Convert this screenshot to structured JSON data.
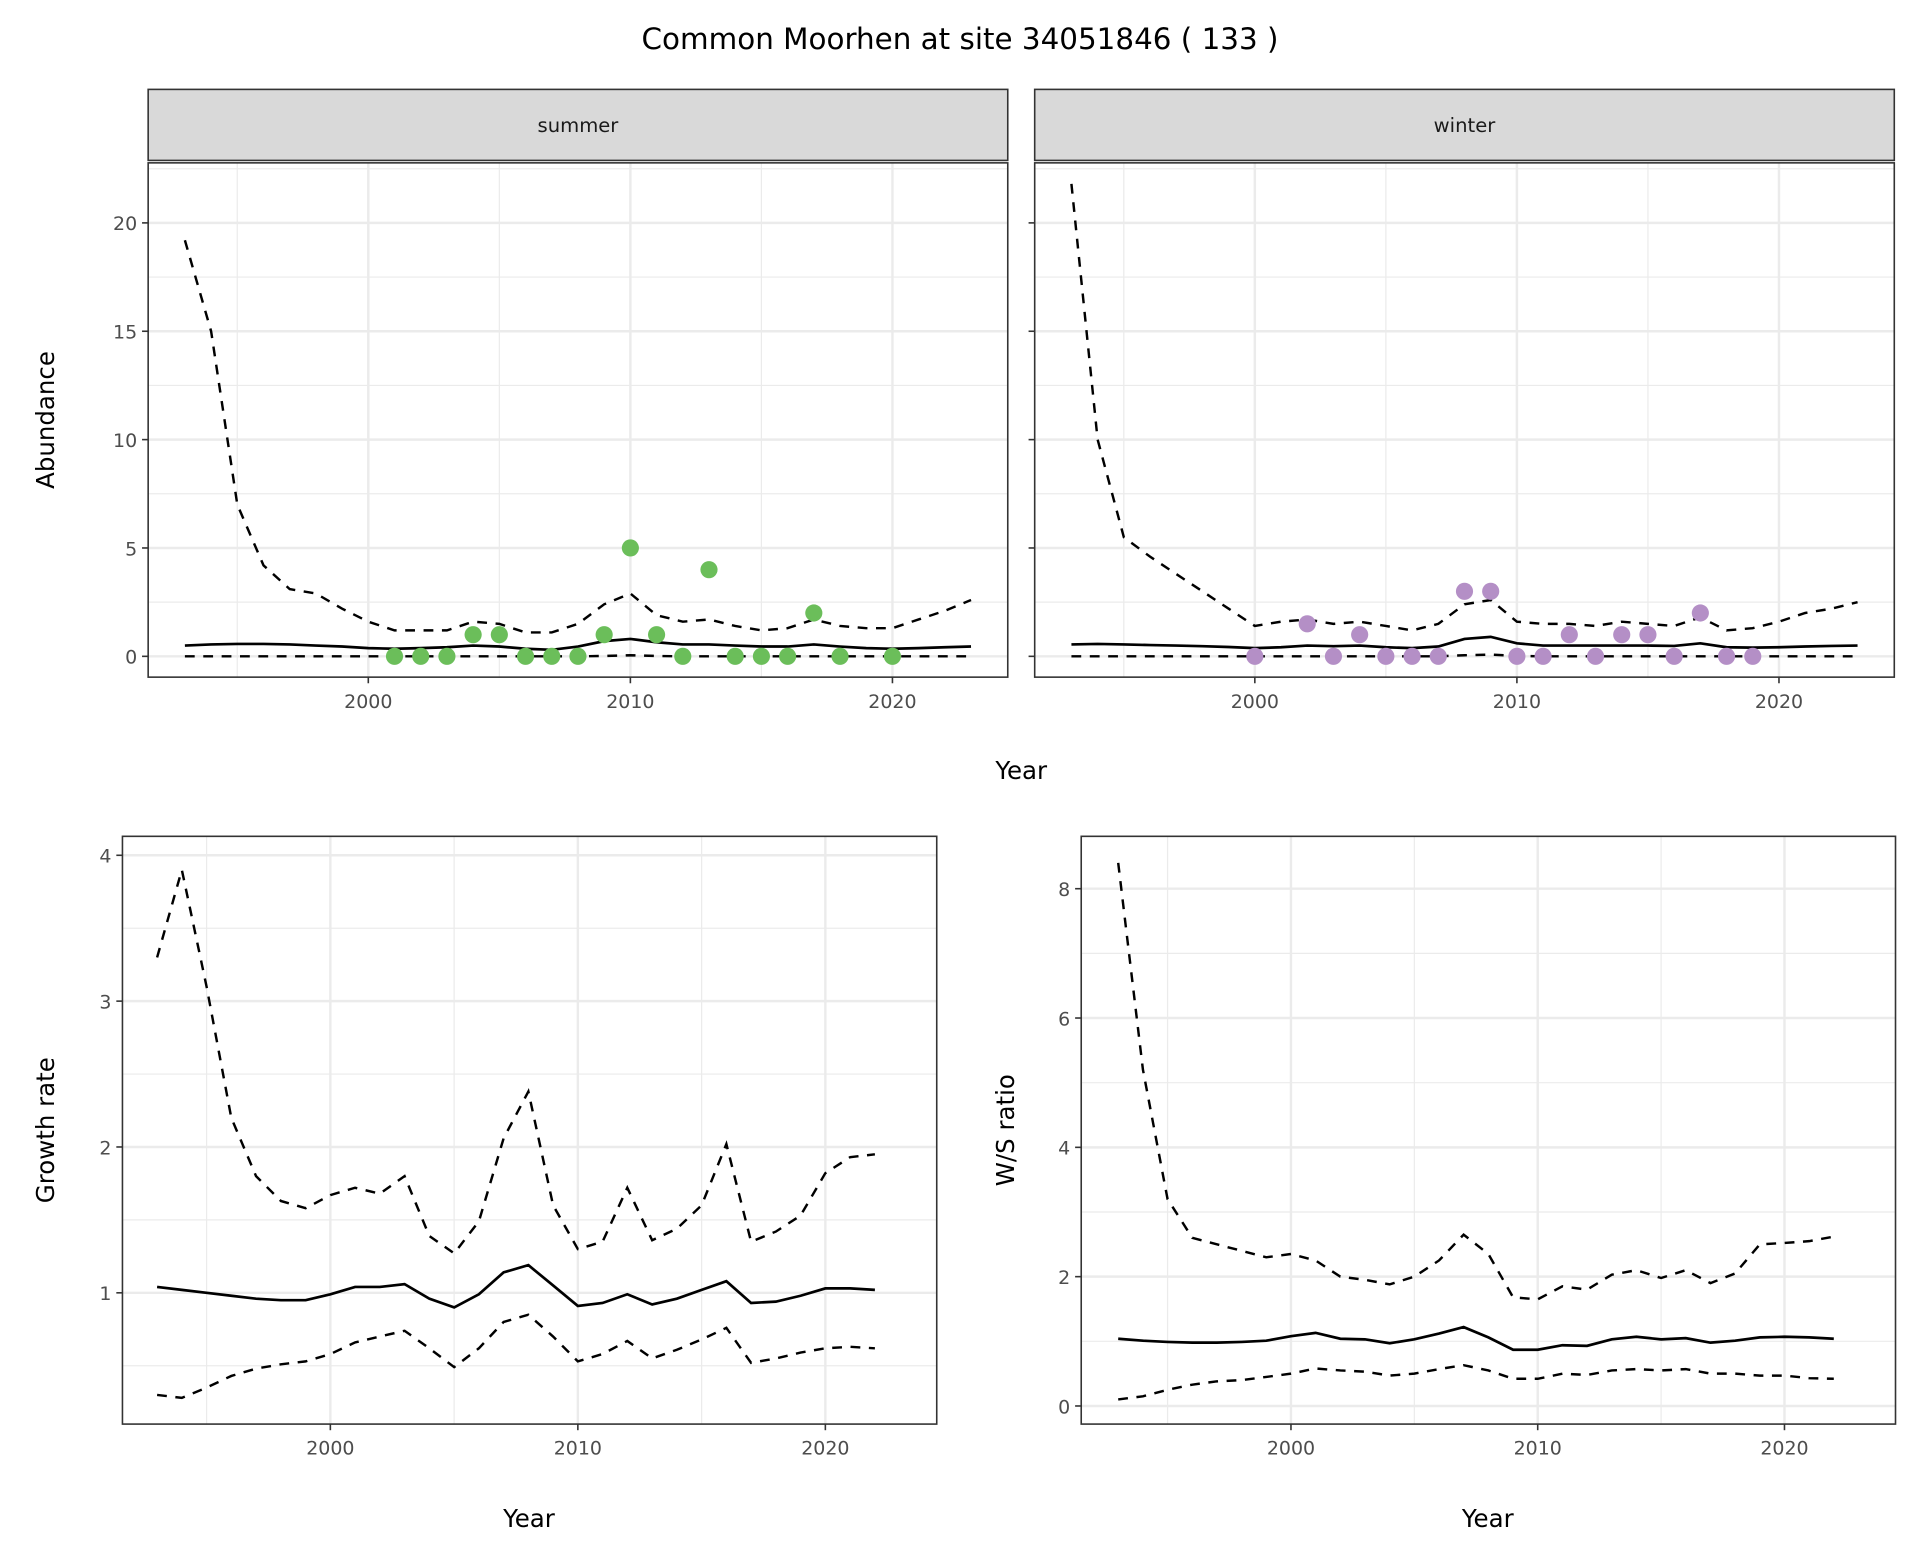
{
  "title": "Common Moorhen at site 34051846 ( 133 )",
  "colors": {
    "summer_points": "#6BBE5A",
    "winter_points": "#B48FC6",
    "lines": "#000000",
    "strip_bg": "#D9D9D9",
    "grid": "#EBEBEB"
  },
  "chart_data": [
    {
      "type": "line",
      "panel": "summer",
      "strip_label": "summer",
      "xlabel": "Year",
      "ylabel": "Abundance",
      "xlim": [
        1991.6,
        2024.4
      ],
      "ylim": [
        -0.96,
        22.77
      ],
      "xticks": [
        2000,
        2010,
        2020
      ],
      "yticks": [
        0,
        5,
        10,
        15,
        20
      ],
      "grid": true,
      "x": [
        1993,
        1994,
        1995,
        1996,
        1997,
        1998,
        1999,
        2000,
        2001,
        2002,
        2003,
        2004,
        2005,
        2006,
        2007,
        2008,
        2009,
        2010,
        2011,
        2012,
        2013,
        2014,
        2015,
        2016,
        2017,
        2018,
        2019,
        2020,
        2021,
        2022,
        2023
      ],
      "mean": [
        0.5,
        0.55,
        0.57,
        0.57,
        0.55,
        0.5,
        0.45,
        0.38,
        0.35,
        0.38,
        0.42,
        0.5,
        0.45,
        0.35,
        0.3,
        0.45,
        0.7,
        0.8,
        0.65,
        0.55,
        0.55,
        0.5,
        0.45,
        0.45,
        0.55,
        0.45,
        0.38,
        0.35,
        0.38,
        0.42,
        0.45
      ],
      "upper": [
        19.2,
        15,
        7,
        4.2,
        3.1,
        2.9,
        2.2,
        1.6,
        1.2,
        1.2,
        1.2,
        1.6,
        1.5,
        1.1,
        1.1,
        1.5,
        2.4,
        2.9,
        1.9,
        1.6,
        1.7,
        1.4,
        1.2,
        1.3,
        1.7,
        1.4,
        1.3,
        1.3,
        1.7,
        2.1,
        2.6
      ],
      "lower": [
        0,
        0,
        0,
        0,
        0,
        0,
        0,
        0,
        0,
        0,
        0,
        0,
        0,
        0,
        0,
        0,
        0.02,
        0.05,
        0.02,
        0,
        0,
        0,
        0,
        0,
        0,
        0,
        0,
        0,
        0,
        0,
        0
      ],
      "points": {
        "x": [
          2001,
          2002,
          2003,
          2004,
          2005,
          2006,
          2007,
          2008,
          2009,
          2010,
          2011,
          2012,
          2013,
          2014,
          2015,
          2016,
          2017,
          2018,
          2020
        ],
        "y": [
          0,
          0,
          0,
          1,
          1,
          0,
          0,
          0,
          1,
          5,
          1,
          0,
          4,
          0,
          0,
          0,
          2,
          0,
          0
        ]
      }
    },
    {
      "type": "line",
      "panel": "winter",
      "strip_label": "winter",
      "xlabel": "Year",
      "ylabel": "Abundance",
      "xlim": [
        1991.6,
        2024.4
      ],
      "ylim": [
        -0.96,
        22.77
      ],
      "xticks": [
        2000,
        2010,
        2020
      ],
      "yticks": [
        0,
        5,
        10,
        15,
        20
      ],
      "grid": true,
      "x": [
        1993,
        1994,
        1995,
        1996,
        1997,
        1998,
        1999,
        2000,
        2001,
        2002,
        2003,
        2004,
        2005,
        2006,
        2007,
        2008,
        2009,
        2010,
        2011,
        2012,
        2013,
        2014,
        2015,
        2016,
        2017,
        2018,
        2019,
        2020,
        2021,
        2022,
        2023
      ],
      "mean": [
        0.55,
        0.57,
        0.55,
        0.52,
        0.5,
        0.47,
        0.43,
        0.38,
        0.42,
        0.5,
        0.47,
        0.5,
        0.42,
        0.38,
        0.45,
        0.8,
        0.9,
        0.6,
        0.5,
        0.5,
        0.5,
        0.5,
        0.5,
        0.48,
        0.6,
        0.42,
        0.4,
        0.42,
        0.45,
        0.48,
        0.5
      ],
      "upper": [
        21.8,
        10,
        5.5,
        4.6,
        3.8,
        3.0,
        2.2,
        1.4,
        1.6,
        1.7,
        1.5,
        1.6,
        1.4,
        1.2,
        1.5,
        2.4,
        2.6,
        1.6,
        1.5,
        1.5,
        1.4,
        1.6,
        1.5,
        1.4,
        1.8,
        1.2,
        1.3,
        1.6,
        2.0,
        2.2,
        2.5
      ],
      "lower": [
        0,
        0,
        0,
        0,
        0,
        0,
        0,
        0,
        0,
        0,
        0,
        0,
        0,
        0,
        0,
        0.05,
        0.08,
        0.02,
        0,
        0,
        0,
        0,
        0,
        0,
        0,
        0,
        0,
        0,
        0,
        0,
        0
      ],
      "points": {
        "x": [
          2000,
          2002,
          2003,
          2004,
          2005,
          2006,
          2007,
          2008,
          2009,
          2010,
          2011,
          2012,
          2013,
          2014,
          2015,
          2016,
          2017,
          2018,
          2019
        ],
        "y": [
          0,
          1.5,
          0,
          1,
          0,
          0,
          0,
          3,
          3,
          0,
          0,
          1,
          0,
          1,
          1,
          0,
          2,
          0,
          0
        ]
      }
    },
    {
      "type": "line",
      "panel": "growth",
      "xlabel": "Year",
      "ylabel": "Growth rate",
      "xlim": [
        1991.6,
        2024.5
      ],
      "ylim": [
        0.1,
        4.13
      ],
      "xticks": [
        2000,
        2010,
        2020
      ],
      "yticks": [
        1,
        2,
        3,
        4
      ],
      "grid": true,
      "x": [
        1993,
        1994,
        1995,
        1996,
        1997,
        1998,
        1999,
        2000,
        2001,
        2002,
        2003,
        2004,
        2005,
        2006,
        2007,
        2008,
        2009,
        2010,
        2011,
        2012,
        2013,
        2014,
        2015,
        2016,
        2017,
        2018,
        2019,
        2020,
        2021,
        2022
      ],
      "mean": [
        1.04,
        1.02,
        1.0,
        0.98,
        0.96,
        0.95,
        0.95,
        0.99,
        1.04,
        1.04,
        1.06,
        0.96,
        0.9,
        0.99,
        1.14,
        1.19,
        1.05,
        0.91,
        0.93,
        0.99,
        0.92,
        0.96,
        1.02,
        1.08,
        0.93,
        0.94,
        0.98,
        1.03,
        1.03,
        1.02
      ],
      "upper": [
        3.3,
        3.9,
        3.1,
        2.2,
        1.8,
        1.63,
        1.58,
        1.67,
        1.72,
        1.68,
        1.8,
        1.39,
        1.27,
        1.49,
        2.06,
        2.38,
        1.6,
        1.3,
        1.35,
        1.72,
        1.36,
        1.44,
        1.6,
        2.02,
        1.35,
        1.42,
        1.53,
        1.82,
        1.93,
        1.95
      ],
      "lower": [
        0.3,
        0.28,
        0.35,
        0.43,
        0.48,
        0.51,
        0.53,
        0.58,
        0.66,
        0.7,
        0.74,
        0.62,
        0.49,
        0.62,
        0.8,
        0.85,
        0.7,
        0.53,
        0.58,
        0.67,
        0.55,
        0.61,
        0.68,
        0.76,
        0.52,
        0.55,
        0.59,
        0.62,
        0.63,
        0.62
      ]
    },
    {
      "type": "line",
      "panel": "ws_ratio",
      "xlabel": "Year",
      "ylabel": "W/S ratio",
      "xlim": [
        1991.5,
        2024.5
      ],
      "ylim": [
        -0.28,
        8.81
      ],
      "xticks": [
        2000,
        2010,
        2020
      ],
      "yticks": [
        0,
        2,
        4,
        6,
        8
      ],
      "grid": true,
      "x": [
        1993,
        1994,
        1995,
        1996,
        1997,
        1998,
        1999,
        2000,
        2001,
        2002,
        2003,
        2004,
        2005,
        2006,
        2007,
        2008,
        2009,
        2010,
        2011,
        2012,
        2013,
        2014,
        2015,
        2016,
        2017,
        2018,
        2019,
        2020,
        2021,
        2022
      ],
      "mean": [
        1.04,
        1.01,
        0.99,
        0.98,
        0.98,
        0.99,
        1.01,
        1.08,
        1.13,
        1.04,
        1.03,
        0.97,
        1.03,
        1.12,
        1.22,
        1.06,
        0.87,
        0.87,
        0.94,
        0.93,
        1.03,
        1.07,
        1.03,
        1.05,
        0.98,
        1.01,
        1.06,
        1.07,
        1.06,
        1.04
      ],
      "upper": [
        8.4,
        5.2,
        3.2,
        2.6,
        2.5,
        2.4,
        2.3,
        2.35,
        2.25,
        2.0,
        1.95,
        1.88,
        2.0,
        2.25,
        2.65,
        2.35,
        1.68,
        1.65,
        1.85,
        1.8,
        2.03,
        2.1,
        1.98,
        2.1,
        1.9,
        2.05,
        2.5,
        2.52,
        2.55,
        2.62
      ],
      "lower": [
        0.1,
        0.15,
        0.25,
        0.33,
        0.38,
        0.4,
        0.45,
        0.5,
        0.58,
        0.55,
        0.53,
        0.47,
        0.5,
        0.57,
        0.63,
        0.55,
        0.42,
        0.42,
        0.5,
        0.48,
        0.55,
        0.57,
        0.55,
        0.57,
        0.5,
        0.5,
        0.47,
        0.47,
        0.43,
        0.42
      ]
    }
  ]
}
